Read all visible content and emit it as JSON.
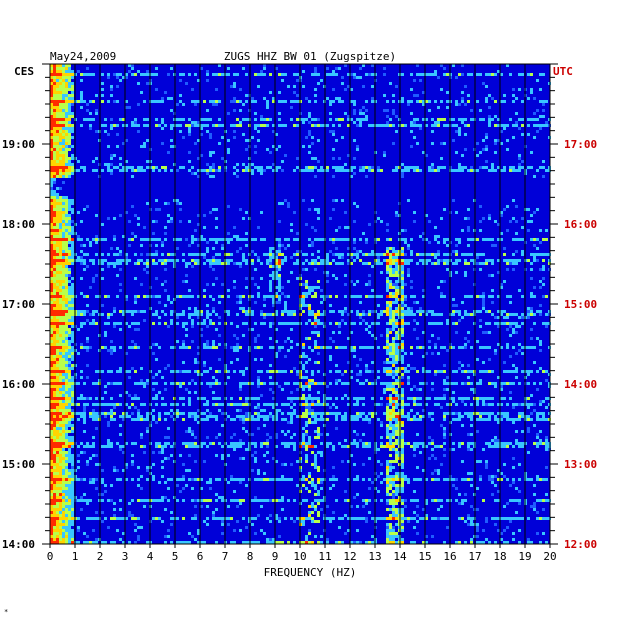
{
  "chart_data": {
    "type": "heatmap",
    "date": "May24,2009",
    "title": "ZUGS HHZ BW 01 (Zugspitze)",
    "left_axis_label": "CES",
    "right_axis_label": "UTC",
    "xlabel": "FREQUENCY (HZ)",
    "x_ticks": [
      "0",
      "1",
      "2",
      "3",
      "4",
      "5",
      "6",
      "7",
      "8",
      "9",
      "10",
      "11",
      "12",
      "13",
      "14",
      "15",
      "16",
      "17",
      "18",
      "19",
      "20"
    ],
    "xlim": [
      0,
      20
    ],
    "left_time_ticks": [
      {
        "label": "19:00",
        "hours_before_top": 1
      },
      {
        "label": "18:00",
        "hours_before_top": 2
      },
      {
        "label": "17:00",
        "hours_before_top": 3
      },
      {
        "label": "16:00",
        "hours_before_top": 4
      },
      {
        "label": "15:00",
        "hours_before_top": 5
      },
      {
        "label": "14:00",
        "hours_before_top": 6
      }
    ],
    "right_time_ticks": [
      {
        "label": "17:00",
        "hours_before_top": 1
      },
      {
        "label": "16:00",
        "hours_before_top": 2
      },
      {
        "label": "15:00",
        "hours_before_top": 3
      },
      {
        "label": "14:00",
        "hours_before_top": 4
      },
      {
        "label": "13:00",
        "hours_before_top": 5
      },
      {
        "label": "12:00",
        "hours_before_top": 6
      }
    ],
    "time_span_hours": 6,
    "colorscale": [
      "#00007a",
      "#0000d8",
      "#1f5cff",
      "#39c6ff",
      "#b8ff4a",
      "#ffd400",
      "#ff2a00"
    ],
    "energy_bands": [
      {
        "freq_range": [
          0,
          1
        ],
        "intensity": "high"
      },
      {
        "freq_range": [
          9,
          11
        ],
        "intensity": "medium"
      },
      {
        "freq_range": [
          13.3,
          14.2
        ],
        "intensity": "medium"
      }
    ],
    "grid": true
  },
  "colors": {
    "left_label": "#000000",
    "right_label": "#cc0000",
    "grid_line": "#000000"
  }
}
